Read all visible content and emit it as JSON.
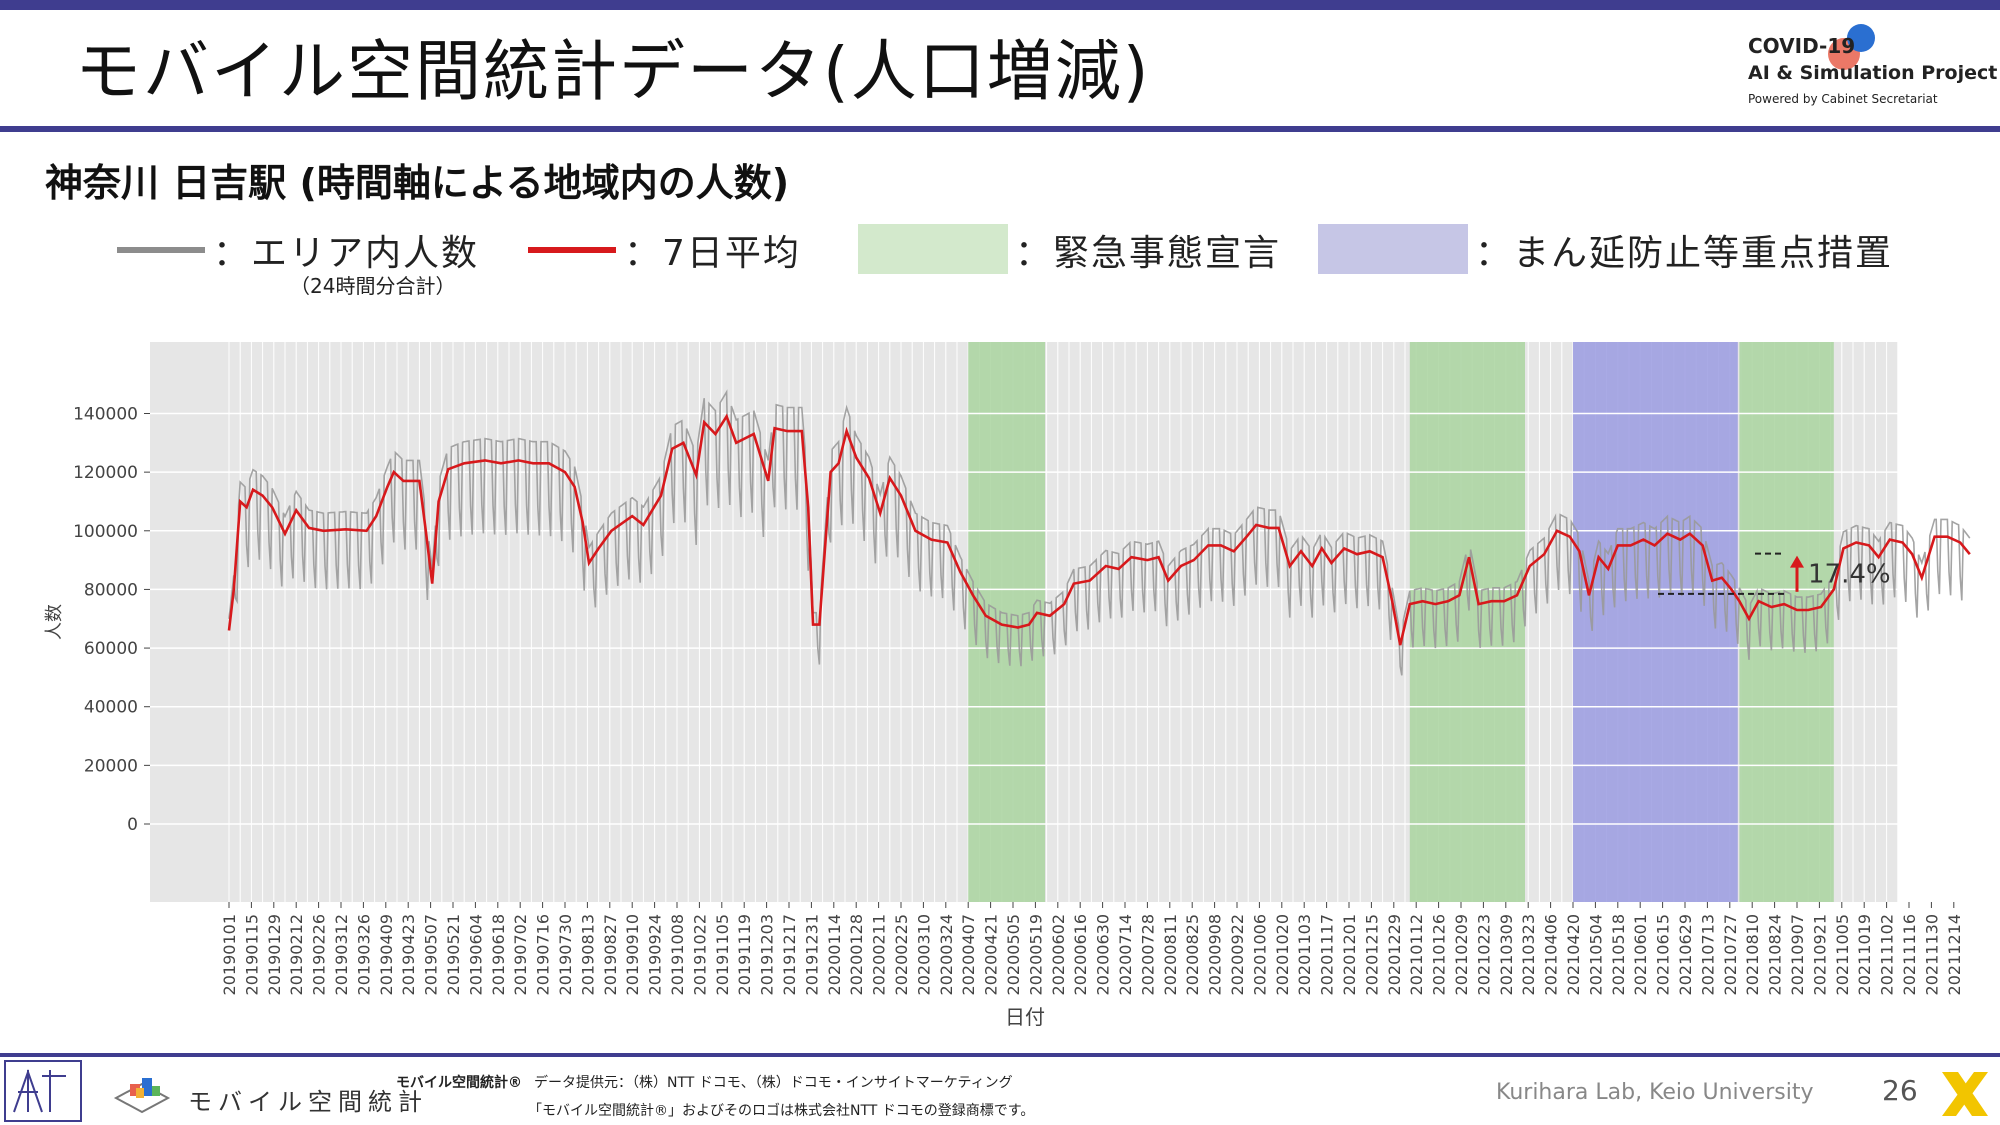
{
  "slide": {
    "title": "モバイル空間統計データ(人口増減)",
    "subtitle": "神奈川 日吉駅 (時間軸による地域内の人数)",
    "page_number": "26",
    "credit": "Kurihara Lab, Keio University"
  },
  "logo": {
    "line1": "COVID-19",
    "line2": "AI & Simulation Project",
    "line3": "Powered by Cabinet Secretariat"
  },
  "legend": {
    "area_label": "：エリア内人数",
    "area_note": "（24時間分合計）",
    "avg_label": "：7日平均",
    "emergency_label": "：緊急事態宣言",
    "priority_label": "：まん延防止等重点措置"
  },
  "colors": {
    "brand": "#3f3d8f",
    "daily_line": "#9a9a9a",
    "avg_line": "#d7191c",
    "emergency": "#a9d49f",
    "priority": "#9a9be0",
    "plot_bg": "#e6e6e6",
    "grid": "#ffffff"
  },
  "footer": {
    "mobile_logo_text": "モバイル空間統計",
    "product_name": "モバイル空間統計®",
    "provider": "データ提供元：（株）NTT ドコモ、（株）ドコモ・インサイトマーケティング",
    "trademark": "「モバイル空間統計®」およびそのロゴは株式会社NTT ドコモの登録商標です。"
  },
  "chart_data": {
    "type": "line",
    "xlabel": "日付",
    "ylabel": "人数",
    "ylim": [
      0,
      155000
    ],
    "yticks": [
      0,
      20000,
      40000,
      60000,
      80000,
      100000,
      120000,
      140000
    ],
    "ytick_labels": [
      "0",
      "20000",
      "40000",
      "60000",
      "80000",
      "100000",
      "120000",
      "140000"
    ],
    "xrange": [
      "2019-01-01",
      "2021-12-31"
    ],
    "xtick_labels": [
      "20190101",
      "20190115",
      "20190129",
      "20190212",
      "20190226",
      "20190312",
      "20190326",
      "20190409",
      "20190423",
      "20190507",
      "20190521",
      "20190604",
      "20190618",
      "20190702",
      "20190716",
      "20190730",
      "20190813",
      "20190827",
      "20190910",
      "20190924",
      "20191008",
      "20191022",
      "20191105",
      "20191119",
      "20191203",
      "20191217",
      "20191231",
      "20200114",
      "20200128",
      "20200211",
      "20200225",
      "20200310",
      "20200324",
      "20200407",
      "20200421",
      "20200505",
      "20200519",
      "20200602",
      "20200616",
      "20200630",
      "20200714",
      "20200728",
      "20200811",
      "20200825",
      "20200908",
      "20200922",
      "20201006",
      "20201020",
      "20201103",
      "20201117",
      "20201201",
      "20201215",
      "20201229",
      "20210112",
      "20210126",
      "20210209",
      "20210223",
      "20210309",
      "20210323",
      "20210406",
      "20210420",
      "20210504",
      "20210518",
      "20210601",
      "20210615",
      "20210629",
      "20210713",
      "20210727",
      "20210810",
      "20210824",
      "20210907",
      "20210921",
      "20211005",
      "20211019",
      "20211102",
      "20211116",
      "20211130",
      "20211214"
    ],
    "grid": true,
    "shaded_periods": [
      {
        "type": "emergency",
        "start": "2020-04-07",
        "end": "2020-05-25"
      },
      {
        "type": "emergency",
        "start": "2021-01-08",
        "end": "2021-03-21"
      },
      {
        "type": "priority",
        "start": "2021-04-20",
        "end": "2021-08-01"
      },
      {
        "type": "emergency",
        "start": "2021-08-02",
        "end": "2021-09-30"
      }
    ],
    "annotation": {
      "text": "17.4%",
      "from": 78500,
      "to": 92200
    },
    "series": [
      {
        "key": "avg",
        "points": [
          [
            "2019-01-01",
            66000
          ],
          [
            "2019-01-04",
            80000
          ],
          [
            "2019-01-08",
            110000
          ],
          [
            "2019-01-12",
            108000
          ],
          [
            "2019-01-16",
            114000
          ],
          [
            "2019-01-22",
            112000
          ],
          [
            "2019-01-28",
            108000
          ],
          [
            "2019-02-05",
            99000
          ],
          [
            "2019-02-12",
            107000
          ],
          [
            "2019-02-20",
            101000
          ],
          [
            "2019-03-01",
            100000
          ],
          [
            "2019-03-15",
            100500
          ],
          [
            "2019-03-28",
            100000
          ],
          [
            "2019-04-03",
            105000
          ],
          [
            "2019-04-10",
            115000
          ],
          [
            "2019-04-14",
            120000
          ],
          [
            "2019-04-20",
            117000
          ],
          [
            "2019-04-30",
            117000
          ],
          [
            "2019-05-04",
            100000
          ],
          [
            "2019-05-08",
            82000
          ],
          [
            "2019-05-12",
            110000
          ],
          [
            "2019-05-18",
            121000
          ],
          [
            "2019-05-28",
            123000
          ],
          [
            "2019-06-10",
            124000
          ],
          [
            "2019-06-20",
            123000
          ],
          [
            "2019-07-01",
            124000
          ],
          [
            "2019-07-10",
            123000
          ],
          [
            "2019-07-20",
            123000
          ],
          [
            "2019-07-30",
            120000
          ],
          [
            "2019-08-05",
            115000
          ],
          [
            "2019-08-10",
            103000
          ],
          [
            "2019-08-14",
            89000
          ],
          [
            "2019-08-20",
            94000
          ],
          [
            "2019-08-28",
            100000
          ],
          [
            "2019-09-10",
            105000
          ],
          [
            "2019-09-17",
            102000
          ],
          [
            "2019-09-28",
            112000
          ],
          [
            "2019-10-05",
            128000
          ],
          [
            "2019-10-12",
            130000
          ],
          [
            "2019-10-20",
            119000
          ],
          [
            "2019-10-25",
            137000
          ],
          [
            "2019-11-01",
            133000
          ],
          [
            "2019-11-08",
            139000
          ],
          [
            "2019-11-14",
            130000
          ],
          [
            "2019-11-25",
            133000
          ],
          [
            "2019-12-04",
            117000
          ],
          [
            "2019-12-08",
            135000
          ],
          [
            "2019-12-16",
            134000
          ],
          [
            "2019-12-25",
            134000
          ],
          [
            "2019-12-29",
            108000
          ],
          [
            "2020-01-01",
            68000
          ],
          [
            "2020-01-05",
            68000
          ],
          [
            "2020-01-12",
            120000
          ],
          [
            "2020-01-17",
            123000
          ],
          [
            "2020-01-22",
            134000
          ],
          [
            "2020-01-28",
            125000
          ],
          [
            "2020-02-05",
            118000
          ],
          [
            "2020-02-12",
            106000
          ],
          [
            "2020-02-18",
            118000
          ],
          [
            "2020-02-25",
            112000
          ],
          [
            "2020-03-05",
            100000
          ],
          [
            "2020-03-15",
            97000
          ],
          [
            "2020-03-25",
            96000
          ],
          [
            "2020-04-02",
            86000
          ],
          [
            "2020-04-10",
            78000
          ],
          [
            "2020-04-18",
            71000
          ],
          [
            "2020-04-28",
            68000
          ],
          [
            "2020-05-08",
            67000
          ],
          [
            "2020-05-15",
            68000
          ],
          [
            "2020-05-20",
            72000
          ],
          [
            "2020-05-28",
            71000
          ],
          [
            "2020-06-06",
            75000
          ],
          [
            "2020-06-12",
            82000
          ],
          [
            "2020-06-22",
            83000
          ],
          [
            "2020-07-02",
            88000
          ],
          [
            "2020-07-10",
            87000
          ],
          [
            "2020-07-18",
            91000
          ],
          [
            "2020-07-28",
            90000
          ],
          [
            "2020-08-04",
            91000
          ],
          [
            "2020-08-10",
            83000
          ],
          [
            "2020-08-18",
            88000
          ],
          [
            "2020-08-26",
            90000
          ],
          [
            "2020-09-04",
            95000
          ],
          [
            "2020-09-12",
            95000
          ],
          [
            "2020-09-20",
            93000
          ],
          [
            "2020-09-28",
            98000
          ],
          [
            "2020-10-04",
            102000
          ],
          [
            "2020-10-12",
            101000
          ],
          [
            "2020-10-18",
            101000
          ],
          [
            "2020-10-25",
            88000
          ],
          [
            "2020-11-01",
            93000
          ],
          [
            "2020-11-08",
            88000
          ],
          [
            "2020-11-14",
            94000
          ],
          [
            "2020-11-20",
            89000
          ],
          [
            "2020-11-28",
            94000
          ],
          [
            "2020-12-06",
            92000
          ],
          [
            "2020-12-14",
            93000
          ],
          [
            "2020-12-22",
            91000
          ],
          [
            "2020-12-28",
            76000
          ],
          [
            "2021-01-02",
            61000
          ],
          [
            "2021-01-08",
            75000
          ],
          [
            "2021-01-16",
            76000
          ],
          [
            "2021-01-24",
            75000
          ],
          [
            "2021-02-01",
            76000
          ],
          [
            "2021-02-08",
            78000
          ],
          [
            "2021-02-14",
            91000
          ],
          [
            "2021-02-20",
            75000
          ],
          [
            "2021-02-28",
            76000
          ],
          [
            "2021-03-08",
            76000
          ],
          [
            "2021-03-16",
            78000
          ],
          [
            "2021-03-24",
            88000
          ],
          [
            "2021-04-02",
            92000
          ],
          [
            "2021-04-10",
            100000
          ],
          [
            "2021-04-18",
            98000
          ],
          [
            "2021-04-24",
            93000
          ],
          [
            "2021-04-30",
            78000
          ],
          [
            "2021-05-06",
            91000
          ],
          [
            "2021-05-12",
            87000
          ],
          [
            "2021-05-18",
            95000
          ],
          [
            "2021-05-26",
            95000
          ],
          [
            "2021-06-03",
            97000
          ],
          [
            "2021-06-10",
            95000
          ],
          [
            "2021-06-18",
            99000
          ],
          [
            "2021-06-26",
            97000
          ],
          [
            "2021-07-02",
            99000
          ],
          [
            "2021-07-10",
            95000
          ],
          [
            "2021-07-16",
            83000
          ],
          [
            "2021-07-22",
            84000
          ],
          [
            "2021-07-28",
            80000
          ],
          [
            "2021-08-02",
            76000
          ],
          [
            "2021-08-08",
            70000
          ],
          [
            "2021-08-14",
            76000
          ],
          [
            "2021-08-22",
            74000
          ],
          [
            "2021-08-30",
            75000
          ],
          [
            "2021-09-07",
            73000
          ],
          [
            "2021-09-14",
            73000
          ],
          [
            "2021-09-22",
            74000
          ],
          [
            "2021-09-30",
            80000
          ],
          [
            "2021-10-06",
            94000
          ],
          [
            "2021-10-14",
            96000
          ],
          [
            "2021-10-22",
            95000
          ],
          [
            "2021-10-28",
            91000
          ],
          [
            "2021-11-04",
            97000
          ],
          [
            "2021-11-12",
            96000
          ],
          [
            "2021-11-18",
            92000
          ],
          [
            "2021-11-24",
            84000
          ],
          [
            "2021-12-02",
            98000
          ],
          [
            "2021-12-10",
            98000
          ],
          [
            "2021-12-18",
            96000
          ],
          [
            "2021-12-24",
            92000
          ]
        ]
      }
    ]
  }
}
